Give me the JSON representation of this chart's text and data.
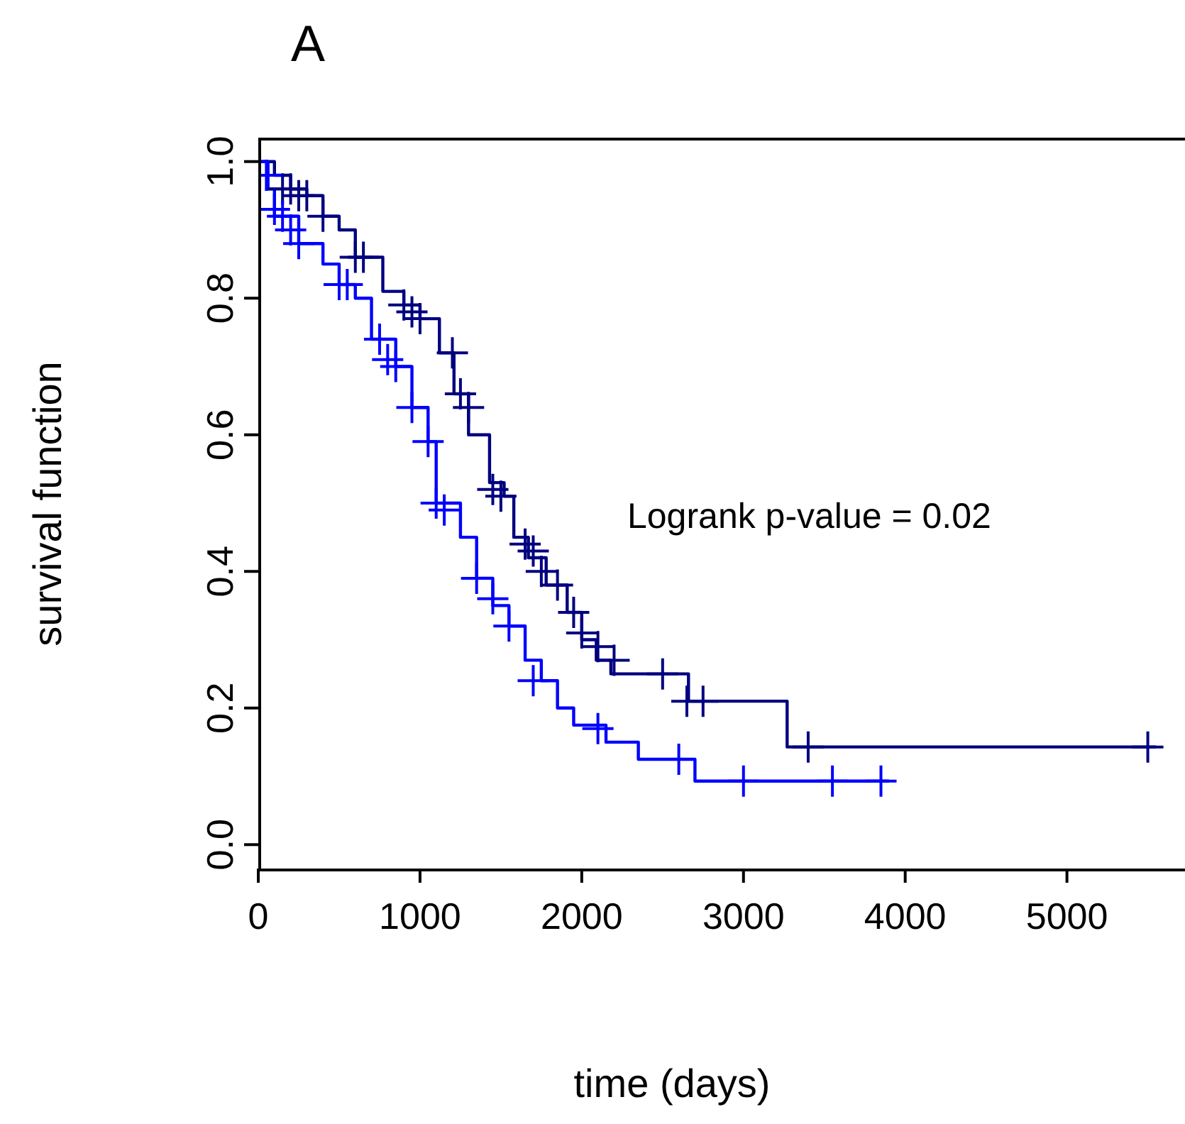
{
  "chart_data": {
    "type": "step",
    "title": "A",
    "xlabel": "time (days)",
    "ylabel": "survival function",
    "xlim": [
      0,
      5730
    ],
    "ylim": [
      -0.035,
      1.035
    ],
    "xticks": [
      0,
      1000,
      2000,
      3000,
      4000,
      5000
    ],
    "yticks": [
      {
        "value": 0,
        "label": "0.0"
      },
      {
        "value": 0.2,
        "label": "0.2"
      },
      {
        "value": 0.4,
        "label": "0.4"
      },
      {
        "value": 0.6,
        "label": "0.6"
      },
      {
        "value": 0.8,
        "label": "0.8"
      },
      {
        "value": 1,
        "label": "1.0"
      }
    ],
    "grid": false,
    "line_style": "solid",
    "annotations": [
      "Logrank p-value = 0.02"
    ],
    "series": [
      {
        "color": "#000080",
        "marker": "none",
        "x": [
          0,
          100,
          200,
          300,
          400,
          500,
          600,
          770,
          900,
          1000,
          1120,
          1210,
          1300,
          1430,
          1520,
          1580,
          1670,
          1780,
          1910,
          2000,
          2090,
          2180,
          2660,
          3270,
          5550
        ],
        "values": [
          1.0,
          0.98,
          0.96,
          0.95,
          0.92,
          0.9,
          0.86,
          0.81,
          0.79,
          0.77,
          0.72,
          0.66,
          0.6,
          0.53,
          0.51,
          0.45,
          0.42,
          0.38,
          0.34,
          0.3,
          0.27,
          0.25,
          0.21,
          0.143,
          0.143
        ]
      },
      {
        "color": "#0000ff",
        "marker": "none",
        "x": [
          0,
          60,
          100,
          250,
          400,
          500,
          600,
          700,
          850,
          950,
          1050,
          1100,
          1250,
          1350,
          1450,
          1550,
          1650,
          1750,
          1850,
          1950,
          2150,
          2350,
          2700,
          3900
        ],
        "values": [
          1.0,
          0.96,
          0.92,
          0.88,
          0.85,
          0.82,
          0.8,
          0.74,
          0.7,
          0.64,
          0.59,
          0.5,
          0.45,
          0.39,
          0.35,
          0.32,
          0.27,
          0.24,
          0.2,
          0.175,
          0.15,
          0.125,
          0.093,
          0.093
        ]
      },
      {
        "type": "scatter",
        "color": "#000080",
        "marker": "cross",
        "x": [
          150,
          200,
          250,
          300,
          400,
          600,
          650,
          900,
          950,
          1000,
          1200,
          1250,
          1300,
          1450,
          1500,
          1650,
          1700,
          1750,
          1850,
          1950,
          2000,
          2100,
          2200,
          2500,
          2650,
          2750,
          3400,
          5500
        ],
        "values": [
          0.96,
          0.96,
          0.95,
          0.95,
          0.92,
          0.86,
          0.86,
          0.79,
          0.78,
          0.77,
          0.72,
          0.66,
          0.64,
          0.52,
          0.51,
          0.44,
          0.43,
          0.4,
          0.38,
          0.34,
          0.31,
          0.29,
          0.27,
          0.25,
          0.21,
          0.21,
          0.143,
          0.143
        ]
      },
      {
        "type": "scatter",
        "color": "#0000ff",
        "marker": "cross",
        "x": [
          50,
          100,
          150,
          200,
          250,
          500,
          550,
          750,
          800,
          850,
          950,
          1050,
          1100,
          1150,
          1350,
          1450,
          1550,
          1700,
          2100,
          2600,
          3000,
          3550,
          3850
        ],
        "values": [
          0.98,
          0.93,
          0.92,
          0.9,
          0.88,
          0.82,
          0.82,
          0.74,
          0.71,
          0.7,
          0.64,
          0.59,
          0.5,
          0.49,
          0.39,
          0.36,
          0.32,
          0.24,
          0.17,
          0.125,
          0.093,
          0.093,
          0.093
        ]
      }
    ]
  }
}
